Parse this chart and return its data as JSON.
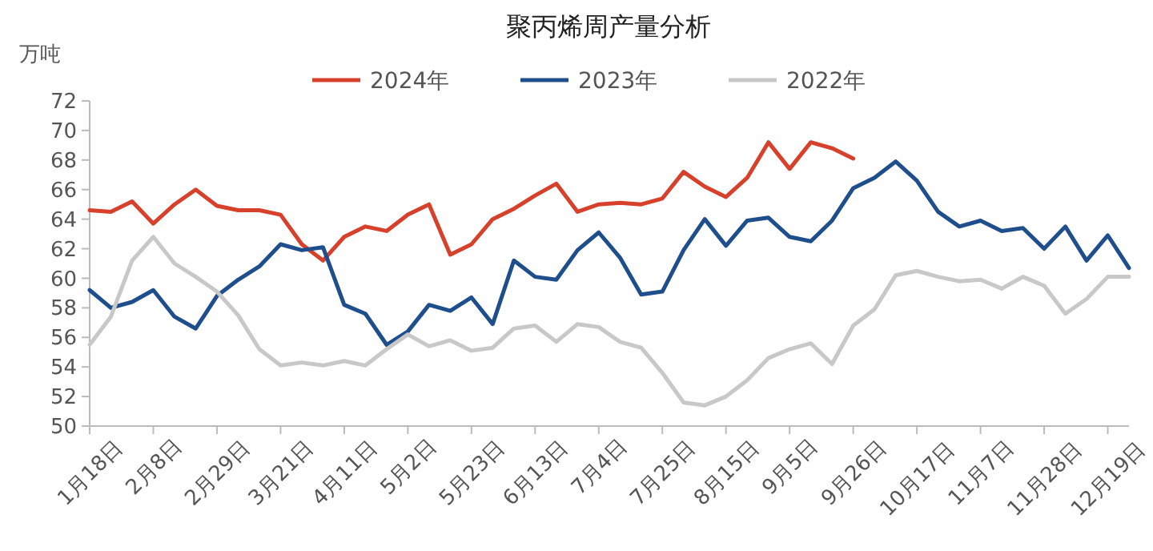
{
  "chart_data": {
    "type": "line",
    "title": "聚丙烯周产量分析",
    "ylabel": "万吨",
    "categories": [
      "1月18日",
      null,
      null,
      "2月8日",
      null,
      null,
      "2月29日",
      null,
      null,
      "3月21日",
      null,
      null,
      "4月11日",
      null,
      null,
      "5月2日",
      null,
      null,
      "5月23日",
      null,
      null,
      "6月13日",
      null,
      null,
      "7月4日",
      null,
      null,
      "7月25日",
      null,
      null,
      "8月15日",
      null,
      null,
      "9月5日",
      null,
      null,
      "9月26日",
      null,
      null,
      "10月17日",
      null,
      null,
      "11月7日",
      null,
      null,
      "11月28日",
      null,
      null,
      "12月19日",
      null
    ],
    "series": [
      {
        "name": "2024年",
        "color": "#d7402b",
        "values": [
          64.6,
          64.5,
          65.2,
          63.7,
          65.0,
          66.0,
          64.9,
          64.6,
          64.6,
          64.3,
          62.3,
          61.2,
          62.8,
          63.5,
          63.2,
          64.3,
          65.0,
          61.6,
          62.3,
          64.0,
          64.7,
          65.6,
          66.4,
          64.5,
          65.0,
          65.1,
          65.0,
          65.4,
          67.2,
          66.2,
          65.5,
          66.8,
          69.2,
          67.4,
          69.2,
          68.8,
          68.1,
          null,
          null,
          null,
          null,
          null,
          null,
          null,
          null,
          null,
          null,
          null,
          null,
          null
        ]
      },
      {
        "name": "2023年",
        "color": "#1f4e8c",
        "values": [
          59.2,
          58.0,
          58.4,
          59.2,
          57.4,
          56.6,
          58.8,
          59.9,
          60.8,
          62.3,
          61.9,
          62.1,
          58.2,
          57.6,
          55.5,
          56.4,
          58.2,
          57.8,
          58.7,
          56.9,
          61.2,
          60.1,
          59.9,
          61.9,
          63.1,
          61.4,
          58.9,
          59.1,
          61.9,
          64.0,
          62.2,
          63.9,
          64.1,
          62.8,
          62.5,
          63.9,
          66.1,
          66.8,
          67.9,
          66.6,
          64.5,
          63.5,
          63.9,
          63.2,
          63.4,
          62.0,
          63.5,
          61.2,
          62.9,
          60.7
        ]
      },
      {
        "name": "2022年",
        "color": "#c8c8c8",
        "values": [
          55.5,
          57.4,
          61.2,
          62.8,
          61.0,
          60.1,
          59.1,
          57.5,
          55.2,
          54.1,
          54.3,
          54.1,
          54.4,
          54.1,
          55.2,
          56.2,
          55.4,
          55.8,
          55.1,
          55.3,
          56.6,
          56.8,
          55.7,
          56.9,
          56.7,
          55.7,
          55.3,
          53.6,
          51.6,
          51.4,
          52.0,
          53.1,
          54.6,
          55.2,
          55.6,
          54.2,
          56.8,
          57.9,
          60.2,
          60.5,
          60.1,
          59.8,
          59.9,
          59.3,
          60.1,
          59.5,
          57.6,
          58.6,
          60.1,
          60.1
        ]
      }
    ],
    "ylim": [
      50,
      72
    ],
    "yticks": [
      50,
      52,
      54,
      56,
      58,
      60,
      62,
      64,
      66,
      68,
      70,
      72
    ],
    "legend": "top",
    "grid": false
  }
}
